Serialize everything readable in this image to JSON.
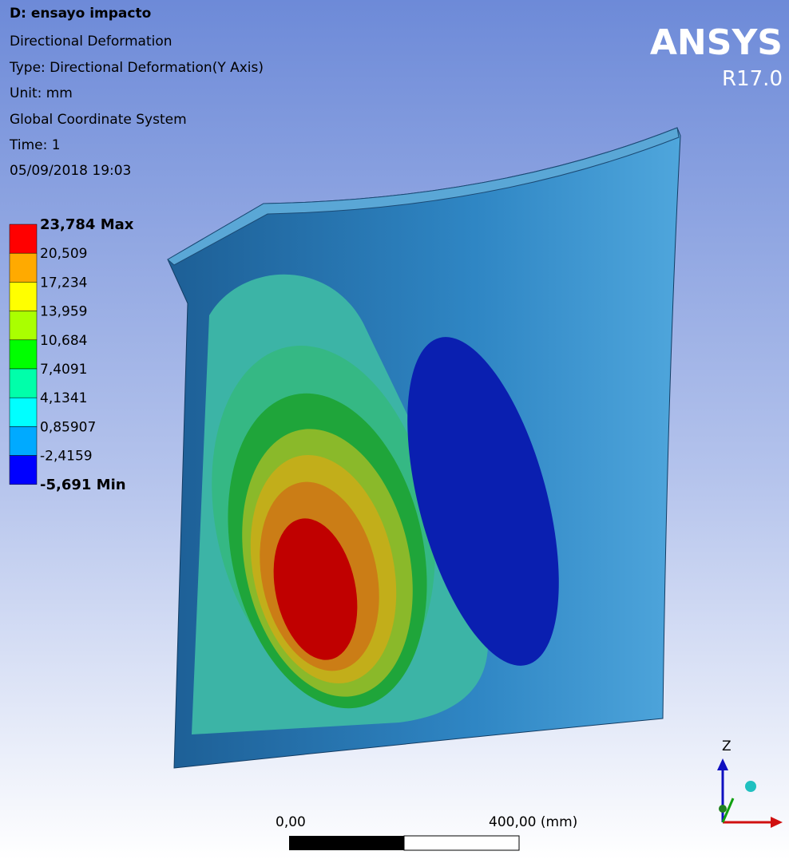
{
  "header": {
    "title": "D: ensayo impacto",
    "lines": [
      "Directional Deformation",
      "Type: Directional Deformation(Y Axis)",
      "Unit: mm",
      "Global Coordinate System",
      "Time: 1",
      "05/09/2018 19:03"
    ]
  },
  "legend": {
    "labels": [
      "23,784 Max",
      "20,509",
      "17,234",
      "13,959",
      "10,684",
      "7,4091",
      "4,1341",
      "0,85907",
      "-2,4159",
      "-5,691 Min"
    ],
    "colors": [
      "#ff0000",
      "#ffaa00",
      "#ffff00",
      "#aaff00",
      "#00ff00",
      "#00ffaa",
      "#00ffff",
      "#00aaff",
      "#0000ff"
    ]
  },
  "logo": {
    "name": "ANSYS",
    "version": "R17.0"
  },
  "scale_bar": {
    "start_label": "0,00",
    "end_label": "400,00 (mm)"
  },
  "triad": {
    "axis_label": "Z"
  }
}
